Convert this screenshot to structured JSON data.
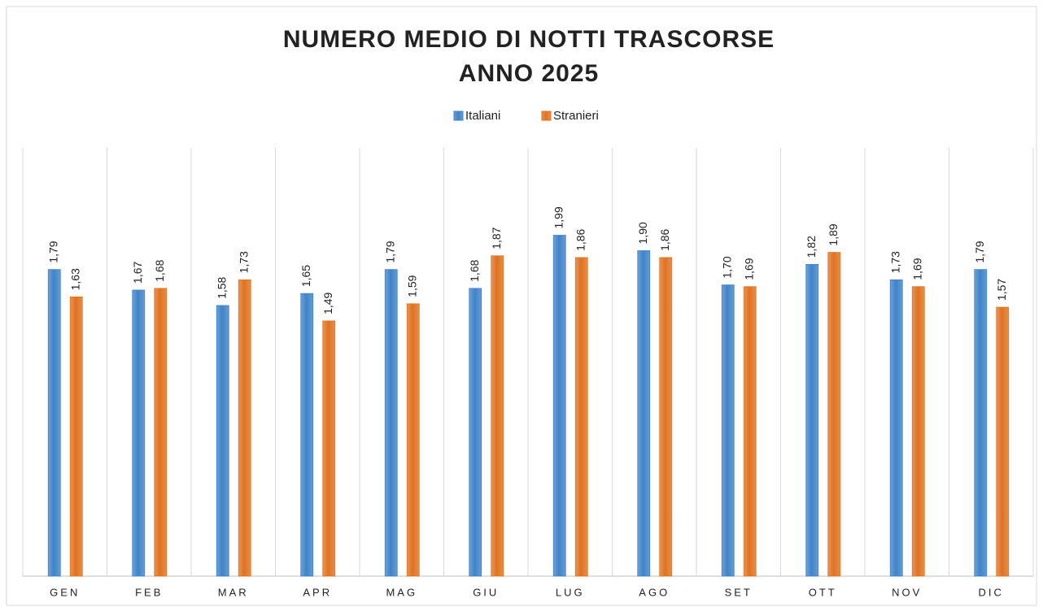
{
  "chart_data": {
    "type": "bar",
    "title": [
      "NUMERO MEDIO DI NOTTI TRASCORSE",
      "ANNO 2025"
    ],
    "categories": [
      "GEN",
      "FEB",
      "MAR",
      "APR",
      "MAG",
      "GIU",
      "LUG",
      "AGO",
      "SET",
      "OTT",
      "NOV",
      "DIC"
    ],
    "series": [
      {
        "name": "Italiani",
        "color": "#3f83c9",
        "values": [
          1.79,
          1.67,
          1.58,
          1.65,
          1.79,
          1.68,
          1.99,
          1.9,
          1.7,
          1.82,
          1.73,
          1.79
        ],
        "value_labels": [
          "1,79",
          "1,67",
          "1,58",
          "1,65",
          "1,79",
          "1,68",
          "1,99",
          "1,90",
          "1,70",
          "1,82",
          "1,73",
          "1,79"
        ]
      },
      {
        "name": "Stranieri",
        "color": "#e0721f",
        "values": [
          1.63,
          1.68,
          1.73,
          1.49,
          1.59,
          1.87,
          1.86,
          1.86,
          1.69,
          1.89,
          1.69,
          1.57
        ],
        "value_labels": [
          "1,63",
          "1,68",
          "1,73",
          "1,49",
          "1,59",
          "1,87",
          "1,86",
          "1,86",
          "1,69",
          "1,89",
          "1,69",
          "1,57"
        ]
      }
    ],
    "ylim": [
      0,
      2.5
    ],
    "legend": "top"
  }
}
